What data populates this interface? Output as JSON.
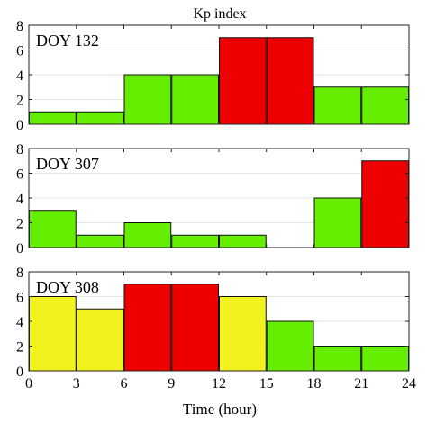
{
  "chart_data": {
    "type": "bar",
    "title": "Kp index",
    "xlabel": "Time (hour)",
    "ylabel": "",
    "x_ticks": [
      "0",
      "3",
      "6",
      "9",
      "12",
      "15",
      "18",
      "21",
      "24"
    ],
    "x_tick_values": [
      0,
      3,
      6,
      9,
      12,
      15,
      18,
      21,
      24
    ],
    "xlim": [
      0,
      24
    ],
    "ylim": [
      0,
      8
    ],
    "y_ticks": [
      "0",
      "2",
      "4",
      "6",
      "8"
    ],
    "y_tick_values": [
      0,
      2,
      4,
      6,
      8
    ],
    "bin_width_hours": 3,
    "grid": true,
    "colors": {
      "green": "#66ee00",
      "yellow": "#f2f21f",
      "red": "#ee0000"
    },
    "panels": [
      {
        "label": "DOY 132",
        "values": [
          1,
          1,
          4,
          4,
          7,
          7,
          3,
          3
        ],
        "colors": [
          "green",
          "green",
          "green",
          "green",
          "red",
          "red",
          "green",
          "green"
        ]
      },
      {
        "label": "DOY 307",
        "values": [
          3,
          1,
          2,
          1,
          1,
          0,
          4,
          7
        ],
        "colors": [
          "green",
          "green",
          "green",
          "green",
          "green",
          "green",
          "green",
          "red"
        ]
      },
      {
        "label": "DOY 308",
        "values": [
          6,
          5,
          7,
          7,
          6,
          4,
          2,
          2
        ],
        "colors": [
          "yellow",
          "yellow",
          "red",
          "red",
          "yellow",
          "green",
          "green",
          "green"
        ]
      }
    ]
  }
}
